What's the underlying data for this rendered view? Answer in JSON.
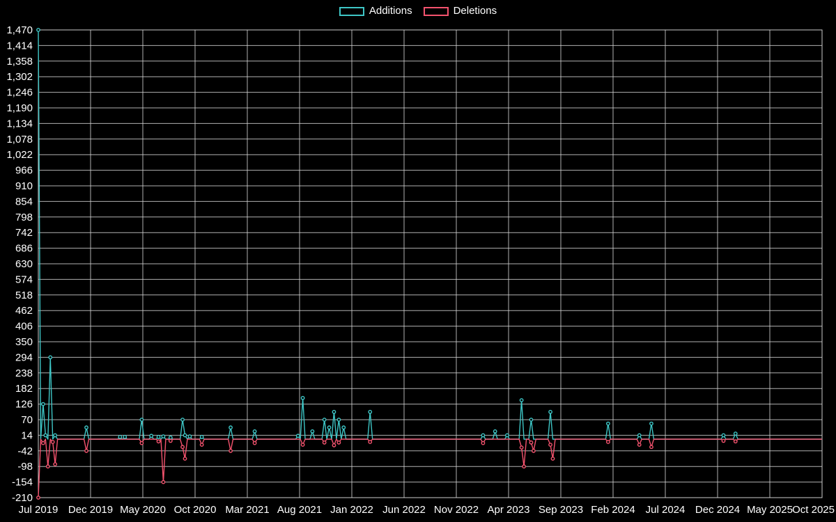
{
  "chart_data": {
    "type": "line",
    "title": "",
    "legend": {
      "position": "top-center",
      "additions_label": "Additions",
      "deletions_label": "Deletions"
    },
    "colors": {
      "background": "#000000",
      "grid": "#d0d0d0",
      "text": "#ffffff",
      "additions": "#3ec6c6",
      "deletions": "#f4536e"
    },
    "x_axis": {
      "unit": "week",
      "total_weeks": 326,
      "labels": [
        "Jul 2019",
        "Dec 2019",
        "May 2020",
        "Oct 2020",
        "Mar 2021",
        "Aug 2021",
        "Jan 2022",
        "Jun 2022",
        "Nov 2022",
        "Apr 2023",
        "Sep 2023",
        "Feb 2024",
        "Jul 2024",
        "Dec 2024",
        "May 2025",
        "Oct 2025"
      ]
    },
    "y_axis": {
      "min": -210,
      "max": 1470,
      "step": 56,
      "tick_labels": [
        "-210",
        "-154",
        "-98",
        "-42",
        "14",
        "70",
        "126",
        "182",
        "238",
        "294",
        "350",
        "406",
        "462",
        "518",
        "574",
        "630",
        "686",
        "742",
        "798",
        "854",
        "910",
        "966",
        "1,022",
        "1,078",
        "1,134",
        "1,190",
        "1,246",
        "1,302",
        "1,358",
        "1,414",
        "1,470"
      ]
    },
    "series": [
      {
        "name": "Additions",
        "color": "#3ec6c6",
        "default_value": 0,
        "points": [
          [
            0,
            1470
          ],
          [
            2,
            126
          ],
          [
            3,
            14
          ],
          [
            5,
            294
          ],
          [
            7,
            14
          ],
          [
            20,
            42
          ],
          [
            34,
            8
          ],
          [
            36,
            8
          ],
          [
            43,
            70
          ],
          [
            47,
            12
          ],
          [
            50,
            8
          ],
          [
            52,
            10
          ],
          [
            55,
            6
          ],
          [
            60,
            70
          ],
          [
            61,
            14
          ],
          [
            63,
            10
          ],
          [
            68,
            8
          ],
          [
            80,
            42
          ],
          [
            90,
            28
          ],
          [
            108,
            12
          ],
          [
            110,
            148
          ],
          [
            114,
            28
          ],
          [
            119,
            70
          ],
          [
            121,
            42
          ],
          [
            123,
            98
          ],
          [
            125,
            70
          ],
          [
            127,
            42
          ],
          [
            138,
            98
          ],
          [
            185,
            14
          ],
          [
            190,
            28
          ],
          [
            195,
            14
          ],
          [
            201,
            140
          ],
          [
            205,
            70
          ],
          [
            213,
            98
          ],
          [
            237,
            56
          ],
          [
            250,
            14
          ],
          [
            255,
            56
          ],
          [
            285,
            14
          ],
          [
            290,
            20
          ]
        ]
      },
      {
        "name": "Deletions",
        "color": "#f4536e",
        "default_value": 0,
        "points": [
          [
            0,
            -210
          ],
          [
            2,
            -14
          ],
          [
            4,
            -98
          ],
          [
            6,
            -10
          ],
          [
            7,
            -90
          ],
          [
            20,
            -42
          ],
          [
            43,
            -14
          ],
          [
            50,
            -8
          ],
          [
            52,
            -154
          ],
          [
            55,
            -6
          ],
          [
            60,
            -28
          ],
          [
            61,
            -70
          ],
          [
            68,
            -20
          ],
          [
            80,
            -42
          ],
          [
            90,
            -14
          ],
          [
            110,
            -20
          ],
          [
            119,
            -12
          ],
          [
            123,
            -22
          ],
          [
            125,
            -12
          ],
          [
            138,
            -10
          ],
          [
            185,
            -14
          ],
          [
            201,
            -30
          ],
          [
            202,
            -98
          ],
          [
            205,
            -12
          ],
          [
            206,
            -42
          ],
          [
            213,
            -20
          ],
          [
            214,
            -70
          ],
          [
            237,
            -10
          ],
          [
            250,
            -20
          ],
          [
            255,
            -28
          ],
          [
            285,
            -6
          ],
          [
            290,
            -8
          ]
        ]
      }
    ]
  }
}
